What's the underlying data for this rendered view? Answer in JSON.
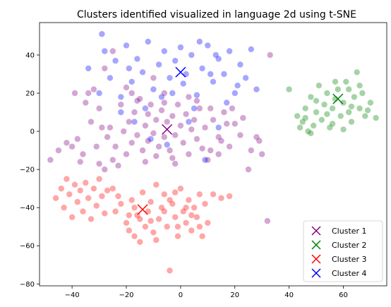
{
  "chart_data": {
    "type": "scatter",
    "title": "Clusters identified visualized in language 2d using t-SNE",
    "xlabel": "",
    "ylabel": "",
    "xlim": [
      -52,
      76
    ],
    "ylim": [
      -81,
      57
    ],
    "xticks": [
      -40,
      -20,
      0,
      20,
      40,
      60
    ],
    "yticks": [
      -80,
      -60,
      -40,
      -20,
      0,
      20,
      40
    ],
    "xtick_labels": [
      "−40",
      "−20",
      "0",
      "20",
      "40",
      "60"
    ],
    "ytick_labels": [
      "−80",
      "−60",
      "−40",
      "−20",
      "0",
      "20",
      "40"
    ],
    "grid": false,
    "legend_position": "lower-right",
    "series": [
      {
        "name": "Cluster 1",
        "color": "#800080",
        "centroid": [
          -5,
          1
        ],
        "points": [
          [
            -48,
            -15
          ],
          [
            -42,
            -6
          ],
          [
            -40,
            -8
          ],
          [
            -38,
            -4
          ],
          [
            -36,
            -12
          ],
          [
            -35,
            15
          ],
          [
            -34,
            20
          ],
          [
            -32,
            22
          ],
          [
            -30,
            12
          ],
          [
            -30,
            -17
          ],
          [
            -28,
            -20
          ],
          [
            -27,
            -3
          ],
          [
            -26,
            2
          ],
          [
            -25,
            -15
          ],
          [
            -24,
            -8
          ],
          [
            -22,
            14
          ],
          [
            -21,
            0
          ],
          [
            -20,
            -12
          ],
          [
            -19,
            5
          ],
          [
            -18,
            -6
          ],
          [
            -17,
            10
          ],
          [
            -16,
            -2
          ],
          [
            -15,
            17
          ],
          [
            -14,
            -10
          ],
          [
            -13,
            3
          ],
          [
            -12,
            9
          ],
          [
            -12,
            -5
          ],
          [
            -11,
            14
          ],
          [
            -10,
            -1
          ],
          [
            -9,
            6
          ],
          [
            -8,
            -8
          ],
          [
            -7,
            11
          ],
          [
            -6,
            -3
          ],
          [
            -5,
            5
          ],
          [
            -4,
            -10
          ],
          [
            -3,
            8
          ],
          [
            -2,
            -2
          ],
          [
            -1,
            14
          ],
          [
            0,
            3
          ],
          [
            1,
            -6
          ],
          [
            2,
            9
          ],
          [
            3,
            -12
          ],
          [
            4,
            1
          ],
          [
            5,
            6
          ],
          [
            6,
            -4
          ],
          [
            7,
            12
          ],
          [
            8,
            -9
          ],
          [
            9,
            2
          ],
          [
            10,
            -15
          ],
          [
            12,
            6
          ],
          [
            14,
            -3
          ],
          [
            16,
            10
          ],
          [
            18,
            -8
          ],
          [
            20,
            4
          ],
          [
            22,
            -2
          ],
          [
            25,
            -20
          ],
          [
            28,
            -3
          ],
          [
            30,
            -12
          ],
          [
            32,
            -47
          ],
          [
            33,
            40
          ],
          [
            -37,
            -16
          ],
          [
            -33,
            5
          ],
          [
            -31,
            -8
          ],
          [
            -29,
            2
          ],
          [
            -23,
            -18
          ],
          [
            -20,
            23
          ],
          [
            -16,
            16
          ],
          [
            -13,
            -16
          ],
          [
            -9,
            -13
          ],
          [
            -6,
            20
          ],
          [
            -3,
            -14
          ],
          [
            3,
            18
          ],
          [
            6,
            16
          ],
          [
            11,
            -10
          ],
          [
            15,
            -5
          ],
          [
            19,
            12
          ],
          [
            23,
            7
          ],
          [
            26,
            -10
          ],
          [
            29,
            -5
          ],
          [
            -25,
            42
          ],
          [
            -10,
            28
          ],
          [
            -45,
            -10
          ],
          [
            -39,
            20
          ],
          [
            -28,
            33
          ],
          [
            -6,
            15
          ],
          [
            -18,
            20
          ],
          [
            11,
            12
          ],
          [
            14,
            -12
          ],
          [
            17,
            4
          ],
          [
            -2,
            -17
          ]
        ]
      },
      {
        "name": "Cluster 2",
        "color": "#008000",
        "centroid": [
          58,
          17
        ],
        "points": [
          [
            40,
            22
          ],
          [
            43,
            8
          ],
          [
            44,
            2
          ],
          [
            45,
            5
          ],
          [
            46,
            12
          ],
          [
            47,
            0
          ],
          [
            48,
            18
          ],
          [
            49,
            3
          ],
          [
            50,
            10
          ],
          [
            51,
            24
          ],
          [
            52,
            6
          ],
          [
            53,
            14
          ],
          [
            54,
            20
          ],
          [
            55,
            2
          ],
          [
            56,
            12
          ],
          [
            57,
            17
          ],
          [
            58,
            22
          ],
          [
            59,
            8
          ],
          [
            60,
            15
          ],
          [
            61,
            26
          ],
          [
            62,
            10
          ],
          [
            63,
            5
          ],
          [
            64,
            18
          ],
          [
            65,
            31
          ],
          [
            66,
            12
          ],
          [
            67,
            20
          ],
          [
            68,
            8
          ],
          [
            70,
            15
          ],
          [
            72,
            7
          ],
          [
            50,
            16
          ],
          [
            54,
            9
          ],
          [
            57,
            26
          ],
          [
            60,
            1
          ],
          [
            62,
            22
          ],
          [
            66,
            24
          ],
          [
            46,
            7
          ],
          [
            48,
            -1
          ],
          [
            56,
            4
          ],
          [
            63,
            13
          ],
          [
            69,
            11
          ]
        ]
      },
      {
        "name": "Cluster 3",
        "color": "#ff0000",
        "centroid": [
          -14,
          -41
        ],
        "points": [
          [
            -46,
            -35
          ],
          [
            -44,
            -30
          ],
          [
            -43,
            -40
          ],
          [
            -42,
            -25
          ],
          [
            -41,
            -33
          ],
          [
            -40,
            -45
          ],
          [
            -39,
            -28
          ],
          [
            -38,
            -37
          ],
          [
            -37,
            -31
          ],
          [
            -36,
            -42
          ],
          [
            -35,
            -27
          ],
          [
            -34,
            -35
          ],
          [
            -33,
            -46
          ],
          [
            -32,
            -30
          ],
          [
            -31,
            -39
          ],
          [
            -30,
            -25
          ],
          [
            -29,
            -34
          ],
          [
            -28,
            -43
          ],
          [
            -27,
            -31
          ],
          [
            -22,
            -38
          ],
          [
            -20,
            -48
          ],
          [
            -18,
            -36
          ],
          [
            -17,
            -55
          ],
          [
            -16,
            -44
          ],
          [
            -15,
            -58
          ],
          [
            -14,
            -32
          ],
          [
            -13,
            -50
          ],
          [
            -12,
            -42
          ],
          [
            -11,
            -37
          ],
          [
            -10,
            -53
          ],
          [
            -9,
            -28
          ],
          [
            -8,
            -46
          ],
          [
            -7,
            -40
          ],
          [
            -6,
            -33
          ],
          [
            -5,
            -50
          ],
          [
            -4,
            -73
          ],
          [
            -3,
            -38
          ],
          [
            -2,
            -45
          ],
          [
            -1,
            -55
          ],
          [
            0,
            -30
          ],
          [
            1,
            -42
          ],
          [
            2,
            -48
          ],
          [
            3,
            -36
          ],
          [
            4,
            -52
          ],
          [
            5,
            -40
          ],
          [
            6,
            -45
          ],
          [
            7,
            -33
          ],
          [
            8,
            -55
          ],
          [
            9,
            -38
          ],
          [
            10,
            -48
          ],
          [
            12,
            -33
          ],
          [
            15,
            -35
          ],
          [
            18,
            -34
          ],
          [
            -25,
            -30
          ],
          [
            -24,
            -42
          ],
          [
            -19,
            -44
          ],
          [
            -17,
            -40
          ],
          [
            -11,
            -47
          ],
          [
            -9,
            -57
          ],
          [
            -6,
            -42
          ],
          [
            -4,
            -36
          ],
          [
            -1,
            -50
          ],
          [
            2,
            -40
          ],
          [
            4,
            -44
          ],
          [
            7,
            -50
          ],
          [
            -2,
            -32
          ],
          [
            -15,
            -46
          ],
          [
            -19,
            -52
          ],
          [
            -23,
            -34
          ]
        ]
      },
      {
        "name": "Cluster 4",
        "color": "#0000ff",
        "centroid": [
          0,
          31
        ],
        "points": [
          [
            -34,
            33
          ],
          [
            -30,
            20
          ],
          [
            -28,
            42
          ],
          [
            -26,
            28
          ],
          [
            -24,
            37
          ],
          [
            -22,
            18
          ],
          [
            -20,
            45
          ],
          [
            -18,
            26
          ],
          [
            -16,
            38
          ],
          [
            -14,
            31
          ],
          [
            -12,
            47
          ],
          [
            -10,
            22
          ],
          [
            -8,
            35
          ],
          [
            -6,
            42
          ],
          [
            -4,
            28
          ],
          [
            -2,
            37
          ],
          [
            0,
            44
          ],
          [
            1,
            25
          ],
          [
            2,
            30
          ],
          [
            4,
            40
          ],
          [
            6,
            19
          ],
          [
            8,
            33
          ],
          [
            10,
            45
          ],
          [
            12,
            26
          ],
          [
            14,
            38
          ],
          [
            16,
            30
          ],
          [
            18,
            42
          ],
          [
            20,
            20
          ],
          [
            22,
            35
          ],
          [
            24,
            28
          ],
          [
            26,
            43
          ],
          [
            28,
            22
          ],
          [
            -29,
            51
          ],
          [
            -22,
            10
          ],
          [
            -17,
            5
          ],
          [
            -11,
            -4
          ],
          [
            -5,
            -7
          ],
          [
            3,
            5
          ],
          [
            9,
            -15
          ],
          [
            14,
            2
          ],
          [
            -7,
            18
          ],
          [
            5,
            12
          ],
          [
            11,
            30
          ],
          [
            17,
            15
          ],
          [
            21,
            24
          ],
          [
            -13,
            12
          ],
          [
            -3,
            20
          ],
          [
            7,
            47
          ],
          [
            -19,
            33
          ],
          [
            13,
            40
          ]
        ]
      }
    ]
  }
}
